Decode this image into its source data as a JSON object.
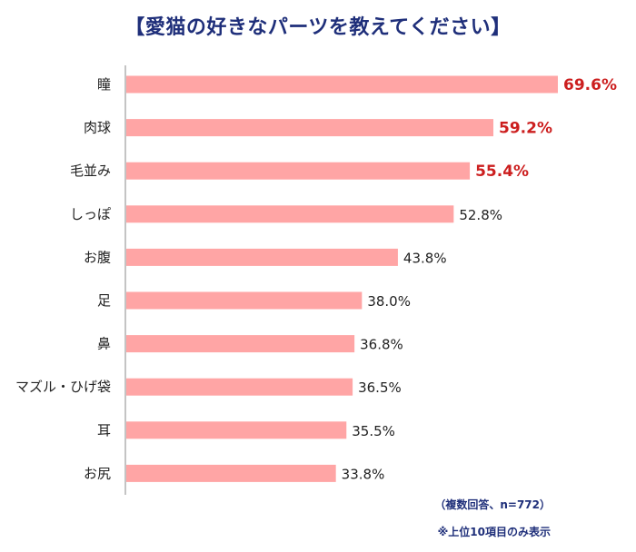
{
  "chart_data": {
    "type": "bar",
    "orientation": "horizontal",
    "title": "【愛猫の好きなパーツを教えてください】",
    "categories": [
      "瞳",
      "肉球",
      "毛並み",
      "しっぽ",
      "お腹",
      "足",
      "鼻",
      "マズル・ひげ袋",
      "耳",
      "お尻"
    ],
    "values": [
      69.6,
      59.2,
      55.4,
      52.8,
      43.8,
      38.0,
      36.8,
      36.5,
      35.5,
      33.8
    ],
    "value_labels": [
      "69.6%",
      "59.2%",
      "55.4%",
      "52.8%",
      "43.8%",
      "38.0%",
      "36.8%",
      "36.5%",
      "35.5%",
      "33.8%"
    ],
    "highlighted_count": 3,
    "xlim": [
      0,
      69.6
    ],
    "grid": false,
    "colors": {
      "bar": "#ffa5a5",
      "highlight_text": "#cc1f1f",
      "title": "#1f2f7a",
      "axis": "#888888"
    }
  },
  "notes": {
    "sample": "（複数回答、n=772）",
    "top10": "※上位10項目のみ表示"
  }
}
